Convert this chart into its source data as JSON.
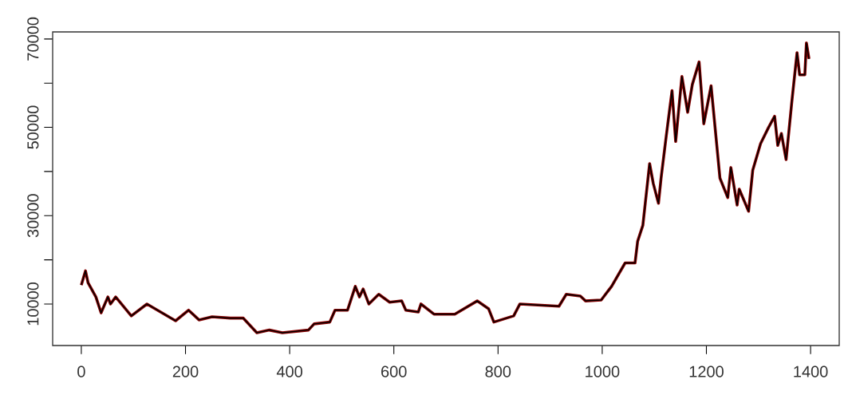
{
  "chart_data": {
    "type": "line",
    "x": [
      0,
      8,
      13,
      28,
      38,
      51,
      56,
      66,
      96,
      126,
      181,
      206,
      226,
      251,
      286,
      311,
      337,
      361,
      386,
      436,
      447,
      477,
      487,
      511,
      526,
      534,
      541,
      552,
      571,
      592,
      615,
      623,
      647,
      652,
      677,
      717,
      760,
      782,
      792,
      830,
      842,
      917,
      931,
      958,
      968,
      998,
      1018,
      1044,
      1063,
      1068,
      1078,
      1091,
      1098,
      1108,
      1113,
      1123,
      1134,
      1141,
      1153,
      1164,
      1173,
      1186,
      1195,
      1209,
      1226,
      1241,
      1247,
      1259,
      1263,
      1281,
      1289,
      1304,
      1319,
      1331,
      1337,
      1344,
      1353,
      1364,
      1374,
      1379,
      1389,
      1392,
      1397
    ],
    "series": [
      {
        "color": "#000000",
        "values": [
          14300,
          17500,
          14800,
          11600,
          8000,
          11600,
          10000,
          11600,
          7300,
          10000,
          6200,
          8600,
          6400,
          7100,
          6800,
          6800,
          3500,
          4100,
          3500,
          4100,
          5500,
          5900,
          8600,
          8600,
          14000,
          11600,
          13400,
          10000,
          12200,
          10400,
          10700,
          8600,
          8200,
          10000,
          7700,
          7700,
          10700,
          8900,
          5900,
          7300,
          10000,
          9500,
          12200,
          11800,
          10700,
          10900,
          14000,
          19300,
          19300,
          24200,
          27800,
          41800,
          37300,
          32800,
          38500,
          48100,
          58300,
          46800,
          61500,
          53400,
          59700,
          64800,
          50800,
          59400,
          38500,
          34100,
          40900,
          32400,
          36000,
          31000,
          40300,
          46300,
          49900,
          52500,
          45900,
          48600,
          42700,
          55800,
          66900,
          61900,
          61900,
          69100,
          65500
        ]
      },
      {
        "color": "#8b0000",
        "values": [
          14300,
          17500,
          14800,
          11600,
          8000,
          11600,
          10000,
          11600,
          7300,
          10000,
          6200,
          8600,
          6400,
          7100,
          6800,
          6800,
          3500,
          4100,
          3500,
          4100,
          5500,
          5900,
          8600,
          8600,
          14000,
          11600,
          13400,
          10000,
          12200,
          10400,
          10700,
          8600,
          8200,
          10000,
          7700,
          7700,
          10700,
          8900,
          5900,
          7300,
          10000,
          9500,
          12200,
          11800,
          10700,
          10900,
          14000,
          19300,
          19300,
          24200,
          27800,
          41800,
          37300,
          32800,
          38500,
          48100,
          58300,
          46800,
          61500,
          53400,
          59700,
          64800,
          50800,
          59400,
          38500,
          34100,
          40900,
          32400,
          36000,
          31000,
          40300,
          46300,
          49900,
          52500,
          45900,
          48600,
          42700,
          55800,
          66900,
          61900,
          61900,
          69100,
          65500
        ]
      }
    ],
    "xlim": [
      -55,
      1455
    ],
    "ylim": [
      600,
      71600
    ],
    "xticks": [
      0,
      200,
      400,
      600,
      800,
      1000,
      1200,
      1400
    ],
    "yticks": [
      10000,
      {
        "value": 20000,
        "label": null
      },
      30000,
      {
        "value": 40000,
        "label": null
      },
      50000,
      {
        "value": 60000,
        "label": null
      },
      70000
    ],
    "line_style": "solid"
  }
}
